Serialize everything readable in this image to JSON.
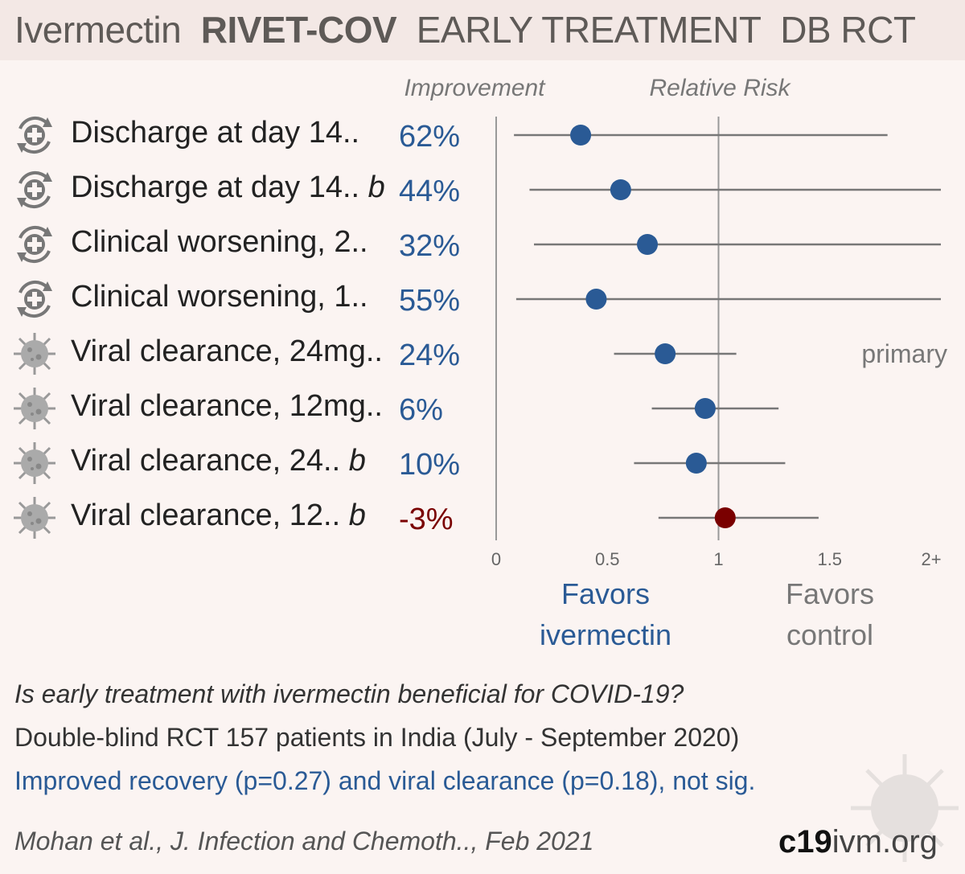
{
  "header": {
    "title_drug": "Ivermectin",
    "title_study": "RIVET-COV",
    "title_type": "EARLY TREATMENT",
    "title_design": "DB RCT"
  },
  "chart_data": {
    "type": "forest",
    "column_headers": {
      "improvement": "Improvement",
      "risk": "Relative Risk"
    },
    "xlim": [
      0,
      2
    ],
    "x_ticks": [
      "0",
      "0.5",
      "1",
      "1.5",
      "2+"
    ],
    "reference_line": 1,
    "rows": [
      {
        "icon": "recovery-icon",
        "label": "Discharge at day 14..",
        "suffix": "",
        "improvement": "62%",
        "rr": 0.38,
        "ci_low": 0.08,
        "ci_high": 1.76,
        "color": "#2a5a95"
      },
      {
        "icon": "recovery-icon",
        "label": "Discharge at day 14..",
        "suffix": "b",
        "improvement": "44%",
        "rr": 0.56,
        "ci_low": 0.15,
        "ci_high": 2.0,
        "color": "#2a5a95"
      },
      {
        "icon": "recovery-icon",
        "label": "Clinical worsening, 2..",
        "suffix": "",
        "improvement": "32%",
        "rr": 0.68,
        "ci_low": 0.17,
        "ci_high": 2.0,
        "color": "#2a5a95"
      },
      {
        "icon": "recovery-icon",
        "label": "Clinical worsening, 1..",
        "suffix": "",
        "improvement": "55%",
        "rr": 0.45,
        "ci_low": 0.09,
        "ci_high": 2.0,
        "color": "#2a5a95"
      },
      {
        "icon": "virus-icon",
        "label": "Viral clearance, 24mg..",
        "suffix": "",
        "improvement": "24%",
        "rr": 0.76,
        "ci_low": 0.53,
        "ci_high": 1.08,
        "color": "#2a5a95",
        "note": "primary"
      },
      {
        "icon": "virus-icon",
        "label": "Viral clearance, 12mg..",
        "suffix": "",
        "improvement": "6%",
        "rr": 0.94,
        "ci_low": 0.7,
        "ci_high": 1.27,
        "color": "#2a5a95"
      },
      {
        "icon": "virus-icon",
        "label": "Viral clearance, 24..",
        "suffix": "b",
        "improvement": "10%",
        "rr": 0.9,
        "ci_low": 0.62,
        "ci_high": 1.3,
        "color": "#2a5a95"
      },
      {
        "icon": "virus-icon",
        "label": "Viral clearance, 12..",
        "suffix": "b",
        "improvement": "-3%",
        "rr": 1.03,
        "ci_low": 0.73,
        "ci_high": 1.45,
        "color": "#7a0000"
      }
    ],
    "favors_left": [
      "Favors",
      "ivermectin"
    ],
    "favors_right": [
      "Favors",
      "control"
    ]
  },
  "summary": {
    "question": "Is early treatment with ivermectin beneficial for COVID-19?",
    "design": "Double-blind RCT 157 patients in India (July - September 2020)",
    "result": "Improved recovery (p=0.27) and viral clearance (p=0.18), not sig."
  },
  "footer": {
    "citation": "Mohan et al., J. Infection and Chemoth.., Feb 2021",
    "brand_bold": "c19",
    "brand_mid": "ivm",
    "brand_tld": ".org"
  },
  "colors": {
    "accent": "#2a5a95",
    "harm": "#7a0000",
    "ci_line": "#777777",
    "axis": "#999999",
    "background": "#fbf4f2"
  }
}
